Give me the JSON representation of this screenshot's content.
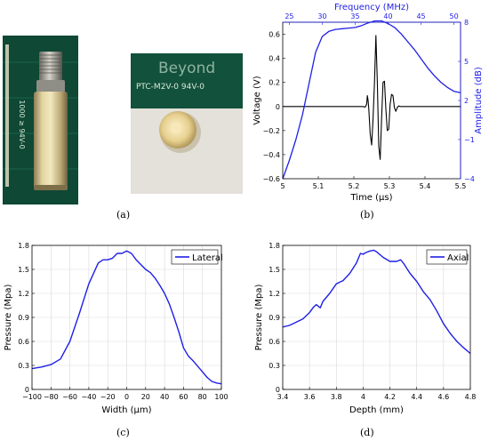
{
  "captions": {
    "a": "(a)",
    "b": "(b)",
    "c": "(c)",
    "d": "(d)"
  },
  "photo_text": {
    "pcb_label_1": "Beyond",
    "pcb_label_2": "PTC-M2V-0 94V-0",
    "ruler_text": "1000 ≥ 94V-0"
  },
  "colors": {
    "blue": "#1f1fe6",
    "black": "#000000",
    "grid": "#d9d9d9"
  },
  "chart_data": [
    {
      "id": "b",
      "type": "line",
      "xlabel": "Time (μs)",
      "ylabel": "Voltage (V)",
      "x2label": "Frequency (MHz)",
      "y2label": "Amplitude (dB)",
      "xlim": [
        5,
        5.5
      ],
      "ylim": [
        -0.6,
        0.7
      ],
      "x2lim": [
        24,
        51
      ],
      "y2lim": [
        -4,
        8
      ],
      "x_ticks": [
        5,
        5.1,
        5.2,
        5.3,
        5.4,
        5.5
      ],
      "x_tick_labels": [
        "5",
        "5.1",
        "5.2",
        "5.3",
        "5.4",
        "5.5"
      ],
      "y_ticks": [
        -0.6,
        -0.4,
        -0.2,
        0,
        0.2,
        0.4,
        0.6
      ],
      "y_tick_labels": [
        "−0.6",
        "−0.4",
        "−0.2",
        "0",
        "0.2",
        "0.4",
        "0.6"
      ],
      "x2_ticks": [
        25,
        30,
        35,
        40,
        45,
        50
      ],
      "x2_tick_labels": [
        "25",
        "30",
        "35",
        "40",
        "45",
        "50"
      ],
      "y2_ticks": [
        -4,
        -1,
        2,
        5,
        8
      ],
      "y2_tick_labels": [
        "−4",
        "−1",
        "2",
        "5",
        "8"
      ],
      "grid": false,
      "series": [
        {
          "axis": "primary",
          "color": "#000000",
          "x": [
            5.0,
            5.18,
            5.225,
            5.232,
            5.236,
            5.238,
            5.24,
            5.242,
            5.246,
            5.25,
            5.254,
            5.258,
            5.262,
            5.266,
            5.27,
            5.274,
            5.278,
            5.282,
            5.286,
            5.29,
            5.294,
            5.298,
            5.302,
            5.306,
            5.31,
            5.314,
            5.318,
            5.322,
            5.326,
            5.33,
            5.34,
            5.5
          ],
          "y": [
            0,
            0,
            0,
            -0.005,
            0.02,
            0.09,
            0.05,
            -0.02,
            -0.23,
            -0.32,
            -0.1,
            0.2,
            0.59,
            0.2,
            -0.33,
            -0.44,
            -0.1,
            0.2,
            0.21,
            -0.02,
            -0.2,
            -0.19,
            0.02,
            0.1,
            0.09,
            -0.01,
            -0.04,
            -0.01,
            0.005,
            0,
            0,
            0
          ]
        },
        {
          "axis": "secondary",
          "color": "#1f1fe6",
          "x": [
            24.0,
            25.0,
            26.0,
            27.0,
            28.0,
            29.0,
            30.0,
            31.0,
            32.0,
            33.0,
            34.0,
            35.0,
            36.0,
            37.0,
            38.0,
            39.0,
            40.0,
            41.0,
            42.0,
            43.0,
            44.0,
            45.0,
            46.0,
            47.0,
            48.0,
            49.0,
            50.0,
            51.0
          ],
          "y": [
            -4.0,
            -2.6,
            -1.0,
            0.9,
            3.3,
            5.7,
            6.9,
            7.3,
            7.45,
            7.5,
            7.55,
            7.6,
            7.75,
            7.95,
            8.1,
            8.1,
            7.9,
            7.6,
            7.1,
            6.5,
            5.9,
            5.2,
            4.5,
            3.9,
            3.4,
            3.0,
            2.7,
            2.6
          ]
        }
      ]
    },
    {
      "id": "c",
      "type": "line",
      "xlabel": "Width (μm)",
      "ylabel": "Pressure (Mpa)",
      "xlim": [
        -100,
        100
      ],
      "ylim": [
        0,
        1.8
      ],
      "x_ticks": [
        -100,
        -80,
        -60,
        -40,
        -20,
        0,
        20,
        40,
        60,
        80,
        100
      ],
      "x_tick_labels": [
        "−100",
        "−80",
        "−60",
        "−40",
        "−20",
        "0",
        "20",
        "40",
        "60",
        "80",
        "100"
      ],
      "y_ticks": [
        0,
        0.3,
        0.6,
        0.9,
        1.2,
        1.5,
        1.8
      ],
      "y_tick_labels": [
        "0",
        "0.3",
        "0.6",
        "0.9",
        "1.2",
        "1.5",
        "1.8"
      ],
      "grid": true,
      "legend": "top-right",
      "series": [
        {
          "name": "Lateral",
          "color": "#1f1fe6",
          "x": [
            -100,
            -90,
            -80,
            -70,
            -60,
            -50,
            -40,
            -30,
            -25,
            -20,
            -15,
            -10,
            -5,
            0,
            5,
            10,
            15,
            20,
            25,
            30,
            35,
            40,
            45,
            50,
            55,
            60,
            65,
            70,
            75,
            80,
            85,
            90,
            95,
            100
          ],
          "y": [
            0.26,
            0.28,
            0.31,
            0.38,
            0.6,
            0.95,
            1.32,
            1.58,
            1.62,
            1.62,
            1.64,
            1.7,
            1.7,
            1.73,
            1.7,
            1.62,
            1.56,
            1.5,
            1.46,
            1.39,
            1.3,
            1.2,
            1.07,
            0.9,
            0.72,
            0.52,
            0.42,
            0.36,
            0.29,
            0.22,
            0.15,
            0.1,
            0.08,
            0.07
          ]
        }
      ]
    },
    {
      "id": "d",
      "type": "line",
      "xlabel": "Depth (mm)",
      "ylabel": "Pressure (Mpa)",
      "xlim": [
        3.4,
        4.8
      ],
      "ylim": [
        0,
        1.8
      ],
      "x_ticks": [
        3.4,
        3.6,
        3.8,
        4.0,
        4.2,
        4.4,
        4.6,
        4.8
      ],
      "x_tick_labels": [
        "3.4",
        "3.6",
        "3.8",
        "4",
        "4.2",
        "4.4",
        "4.6",
        "4.8"
      ],
      "y_ticks": [
        0,
        0.3,
        0.6,
        0.9,
        1.2,
        1.5,
        1.8
      ],
      "y_tick_labels": [
        "0",
        "0.3",
        "0.6",
        "0.9",
        "1.2",
        "1.5",
        "1.8"
      ],
      "grid": true,
      "legend": "top-right",
      "series": [
        {
          "name": "Axial",
          "color": "#1f1fe6",
          "x": [
            3.4,
            3.45,
            3.5,
            3.55,
            3.6,
            3.63,
            3.65,
            3.68,
            3.7,
            3.75,
            3.8,
            3.85,
            3.9,
            3.95,
            3.98,
            4.0,
            4.02,
            4.05,
            4.08,
            4.1,
            4.15,
            4.2,
            4.25,
            4.28,
            4.3,
            4.35,
            4.4,
            4.45,
            4.5,
            4.55,
            4.6,
            4.65,
            4.7,
            4.75,
            4.8
          ],
          "y": [
            0.78,
            0.8,
            0.84,
            0.88,
            0.96,
            1.03,
            1.06,
            1.02,
            1.1,
            1.2,
            1.32,
            1.36,
            1.45,
            1.58,
            1.7,
            1.69,
            1.71,
            1.73,
            1.74,
            1.72,
            1.65,
            1.6,
            1.6,
            1.62,
            1.58,
            1.45,
            1.35,
            1.22,
            1.12,
            0.98,
            0.82,
            0.7,
            0.6,
            0.52,
            0.45
          ]
        }
      ]
    }
  ]
}
